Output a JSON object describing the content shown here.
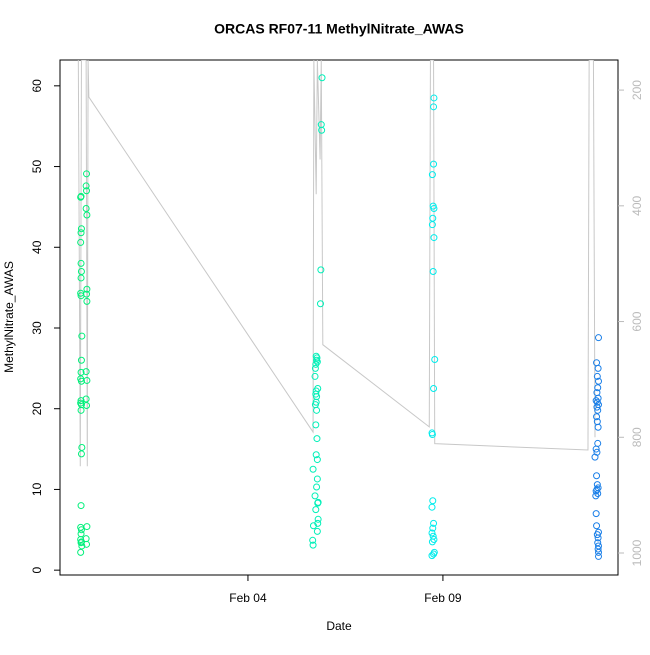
{
  "chart_data": {
    "type": "scatter",
    "title": "ORCAS RF07-11 MethylNitrate_AWAS",
    "xlabel": "Date",
    "ylabel": "MethylNitrate_AWAS",
    "xlim": [
      -0.82,
      13.49
    ],
    "xticks": [
      {
        "value": 4,
        "label": "Feb 04"
      },
      {
        "value": 9,
        "label": "Feb 09"
      }
    ],
    "ylim": [
      -0.6,
      63.2
    ],
    "yticks": [
      0,
      10,
      20,
      30,
      40,
      50,
      60
    ],
    "y2lim": [
      1038,
      148
    ],
    "y2ticks": [
      200,
      400,
      600,
      800,
      1000
    ],
    "series": [
      {
        "color": "#00f07a",
        "x": [
          -0.28,
          -0.29,
          -0.27,
          -0.28,
          -0.29,
          -0.28,
          -0.27,
          -0.28,
          -0.29,
          -0.28,
          -0.26,
          -0.27,
          -0.28,
          -0.29,
          -0.27,
          -0.28,
          -0.29,
          -0.27,
          -0.28,
          -0.26,
          -0.27,
          -0.28,
          -0.29,
          -0.27,
          -0.28,
          -0.29,
          -0.27,
          -0.28,
          -0.26,
          -0.29,
          -0.14,
          -0.15,
          -0.14,
          -0.15,
          -0.13,
          -0.13,
          -0.14,
          -0.13,
          -0.15,
          -0.13,
          -0.15,
          -0.14,
          -0.13,
          -0.15,
          -0.14
        ],
        "values": [
          46.3,
          46.2,
          42.3,
          41.8,
          40.6,
          38,
          37,
          36.2,
          34.3,
          34,
          29,
          26,
          24.5,
          23.7,
          23.4,
          21,
          20.7,
          20.5,
          19.8,
          15.2,
          14.4,
          8,
          5.3,
          5,
          4.5,
          3.8,
          3.5,
          3.4,
          3,
          2.2,
          49.1,
          47.6,
          47,
          44.8,
          44,
          34.8,
          34.2,
          33.3,
          24.6,
          23.5,
          21.2,
          20.4,
          5.4,
          3.9,
          3.2
        ]
      },
      {
        "color": "#00f0b8",
        "x": [
          5.9,
          5.88,
          5.89,
          5.87,
          5.86,
          5.75,
          5.76,
          5.74,
          5.73,
          5.72,
          5.75,
          5.74,
          5.73,
          5.76,
          5.74,
          5.77,
          5.75,
          5.78,
          5.67,
          5.78,
          5.76,
          5.72,
          5.8,
          5.79,
          5.74,
          5.8,
          5.79,
          5.68,
          5.78,
          5.66,
          5.67,
          5.77,
          5.78,
          5.79,
          5.76,
          5.75
        ],
        "values": [
          61,
          55.2,
          54.5,
          37.2,
          33,
          26.5,
          26,
          25.5,
          25,
          24,
          22.2,
          21.8,
          20.5,
          19.8,
          18,
          16.3,
          14.3,
          13.7,
          12.5,
          11.3,
          10.3,
          9.2,
          8.4,
          8.3,
          7.5,
          6.3,
          5.8,
          5.5,
          4.8,
          3.7,
          3.1,
          26.3,
          25.8,
          22.5,
          21.5,
          20.8
        ]
      },
      {
        "color": "#00ecec",
        "x": [
          8.77,
          8.76,
          8.76,
          8.73,
          8.75,
          8.77,
          8.74,
          8.73,
          8.77,
          8.75,
          8.79,
          8.76,
          8.72,
          8.73,
          8.74,
          8.72,
          8.76,
          8.74,
          8.72,
          8.75,
          8.77,
          8.73,
          8.78,
          8.72,
          8.76
        ],
        "values": [
          58.5,
          57.4,
          50.3,
          49,
          45.1,
          44.8,
          43.6,
          42.8,
          41.2,
          37,
          26.1,
          22.5,
          17,
          16.8,
          8.6,
          7.8,
          5.8,
          5.2,
          4.6,
          4.2,
          3.8,
          3.5,
          2.2,
          1.8,
          2.0
        ]
      },
      {
        "color": "#1a7fe8",
        "x": [
          12.99,
          12.94,
          12.98,
          12.96,
          12.99,
          12.97,
          12.95,
          12.98,
          12.93,
          12.96,
          12.99,
          12.95,
          12.97,
          12.94,
          12.96,
          12.98,
          12.97,
          12.93,
          12.95,
          12.9,
          12.94,
          12.96,
          12.98,
          12.95,
          12.93,
          12.97,
          12.92,
          12.93,
          12.94,
          12.99,
          12.96,
          12.98,
          12.97,
          12.99,
          12.98,
          12.99,
          12.99
        ],
        "values": [
          28.8,
          25.7,
          25,
          24,
          23.4,
          22.6,
          22,
          21.3,
          21,
          20.8,
          20.5,
          20.2,
          19.8,
          19,
          18.4,
          17.7,
          15.7,
          15,
          14.6,
          14,
          11.7,
          10.6,
          10.2,
          10,
          9.8,
          9.5,
          9.2,
          7,
          5.5,
          4.7,
          4.4,
          4,
          3.4,
          3,
          2.6,
          2.2,
          1.7
        ]
      },
      {
        "color": "#c8c8c8",
        "axis": "y2",
        "style": "line",
        "x": [
          -0.35,
          -0.3,
          -0.27,
          -0.15,
          -0.12,
          -0.1,
          -0.08,
          5.67,
          5.69,
          5.75,
          5.78,
          5.85,
          5.88,
          5.92,
          8.65,
          8.68,
          8.72,
          8.76,
          8.79,
          12.72,
          12.75,
          12.82,
          12.86,
          12.9
        ],
        "values": [
          148,
          850,
          148,
          148,
          850,
          148,
          212,
          791,
          148,
          380,
          148,
          320,
          148,
          640,
          782,
          148,
          148,
          148,
          811,
          822,
          148,
          148,
          148,
          800
        ]
      }
    ]
  }
}
